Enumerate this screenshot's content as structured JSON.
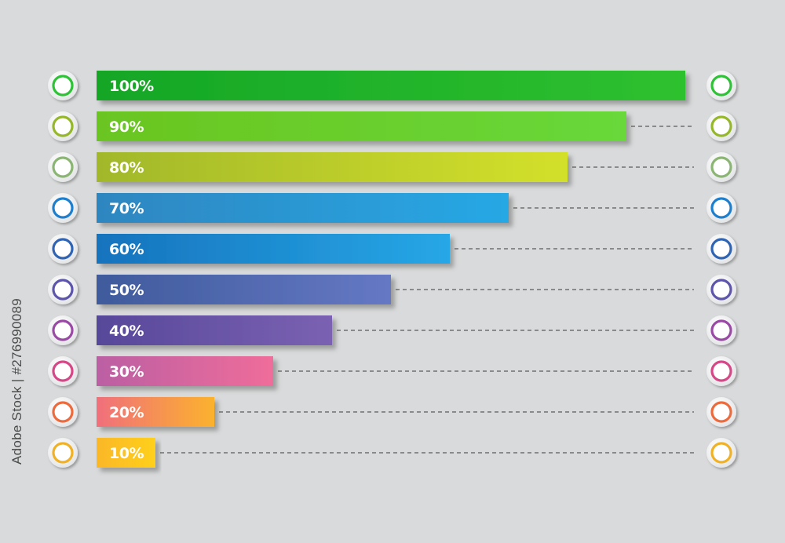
{
  "chart_data": {
    "type": "bar",
    "orientation": "horizontal",
    "categories": [
      "100%",
      "90%",
      "80%",
      "70%",
      "60%",
      "50%",
      "40%",
      "30%",
      "20%",
      "10%"
    ],
    "values": [
      100,
      90,
      80,
      70,
      60,
      50,
      40,
      30,
      20,
      10
    ],
    "xlim": [
      0,
      100
    ],
    "grid": false,
    "legend": "none",
    "colors": [
      [
        "#14a626",
        "#2fc12f"
      ],
      [
        "#6ac520",
        "#68d83a"
      ],
      [
        "#a2b82c",
        "#d3e02a"
      ],
      [
        "#2f86c0",
        "#27a8e5"
      ],
      [
        "#1673bd",
        "#26a7e6"
      ],
      [
        "#3f5b9c",
        "#6578c4"
      ],
      [
        "#57489a",
        "#7b61b2"
      ],
      [
        "#bb5fa3",
        "#ef6d9a"
      ],
      [
        "#f06f7c",
        "#fbb22d"
      ],
      [
        "#fab728",
        "#ffd01a"
      ]
    ],
    "ring_colors": [
      "#2ec236",
      "#95b72a",
      "#8bb572",
      "#1d7fcd",
      "#2f64b5",
      "#5c55ab",
      "#9a4aa5",
      "#d54786",
      "#ec6a3c",
      "#f0b224"
    ]
  },
  "watermark": {
    "stock_id": "Adobe Stock | #276990089"
  }
}
